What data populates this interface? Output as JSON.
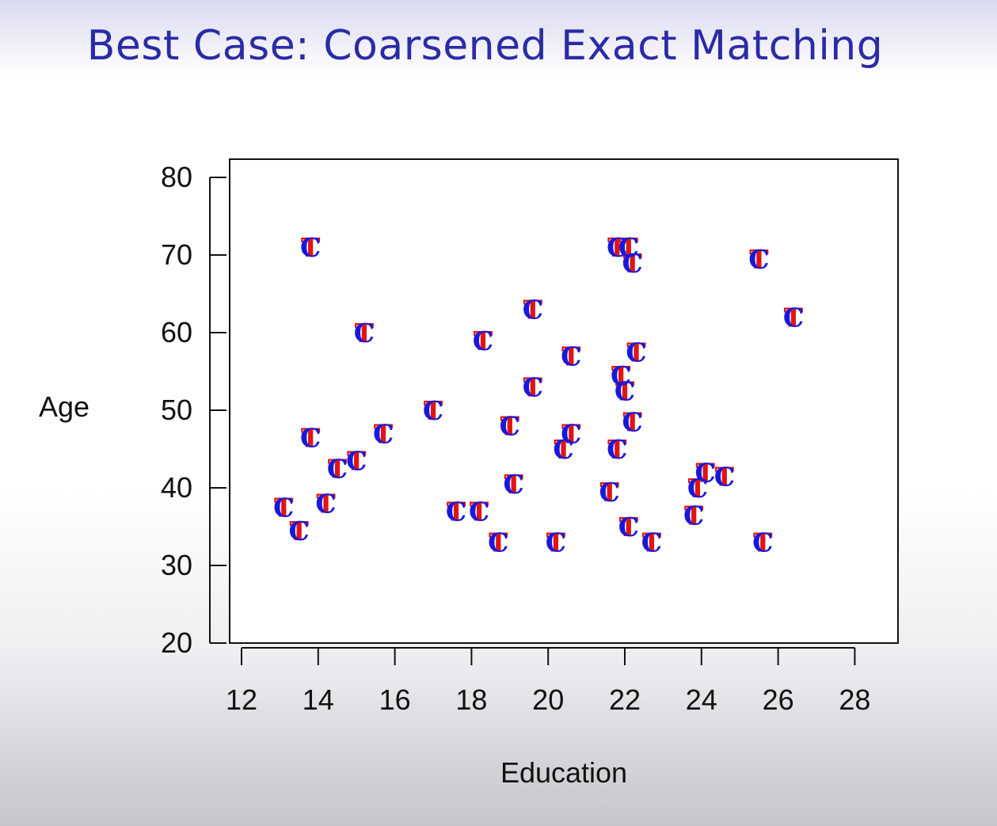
{
  "slide": {
    "title": "Best Case: Coarsened Exact Matching"
  },
  "chart_data": {
    "type": "scatter",
    "title": "Best Case: Coarsened Exact Matching",
    "xlabel": "Education",
    "ylabel": "Age",
    "xlim": [
      12,
      28
    ],
    "ylim": [
      20,
      80
    ],
    "xticks": [
      12,
      14,
      16,
      18,
      20,
      22,
      24,
      26,
      28
    ],
    "yticks": [
      20,
      30,
      40,
      50,
      60,
      70,
      80
    ],
    "grid": false,
    "series": [
      {
        "name": "T",
        "color": "#e01414",
        "marker": "T",
        "points": [
          [
            13.8,
            71
          ],
          [
            15.2,
            60
          ],
          [
            13.8,
            46.5
          ],
          [
            15.7,
            47
          ],
          [
            13.1,
            37.5
          ],
          [
            13.5,
            34.5
          ],
          [
            14.2,
            38
          ],
          [
            14.5,
            42.5
          ],
          [
            15.0,
            43.5
          ],
          [
            17.0,
            50
          ],
          [
            18.3,
            59
          ],
          [
            19.6,
            63
          ],
          [
            19.6,
            53
          ],
          [
            20.6,
            57
          ],
          [
            19.0,
            48
          ],
          [
            20.6,
            47
          ],
          [
            20.4,
            45
          ],
          [
            19.1,
            40.5
          ],
          [
            17.6,
            37
          ],
          [
            18.2,
            37
          ],
          [
            18.7,
            33
          ],
          [
            20.2,
            33
          ],
          [
            21.8,
            71
          ],
          [
            22.1,
            71
          ],
          [
            22.2,
            69
          ],
          [
            22.3,
            57.5
          ],
          [
            21.9,
            54.5
          ],
          [
            22.0,
            52.5
          ],
          [
            22.2,
            48.5
          ],
          [
            21.8,
            45
          ],
          [
            21.6,
            39.5
          ],
          [
            22.1,
            35
          ],
          [
            22.7,
            33
          ],
          [
            23.8,
            36.5
          ],
          [
            23.9,
            40
          ],
          [
            24.1,
            42
          ],
          [
            24.6,
            41.5
          ],
          [
            25.5,
            69.5
          ],
          [
            26.4,
            62
          ],
          [
            25.6,
            33
          ]
        ]
      },
      {
        "name": "C",
        "color": "#1818dc",
        "marker": "C",
        "points": [
          [
            13.8,
            71
          ],
          [
            15.2,
            60
          ],
          [
            13.8,
            46.5
          ],
          [
            15.7,
            47
          ],
          [
            13.1,
            37.5
          ],
          [
            13.5,
            34.5
          ],
          [
            14.2,
            38
          ],
          [
            14.5,
            42.5
          ],
          [
            15.0,
            43.5
          ],
          [
            17.0,
            50
          ],
          [
            18.3,
            59
          ],
          [
            19.6,
            63
          ],
          [
            19.6,
            53
          ],
          [
            20.6,
            57
          ],
          [
            19.0,
            48
          ],
          [
            20.6,
            47
          ],
          [
            20.4,
            45
          ],
          [
            19.1,
            40.5
          ],
          [
            17.6,
            37
          ],
          [
            18.2,
            37
          ],
          [
            18.7,
            33
          ],
          [
            20.2,
            33
          ],
          [
            21.8,
            71
          ],
          [
            22.1,
            71
          ],
          [
            22.2,
            69
          ],
          [
            22.3,
            57.5
          ],
          [
            21.9,
            54.5
          ],
          [
            22.0,
            52.5
          ],
          [
            22.2,
            48.5
          ],
          [
            21.8,
            45
          ],
          [
            21.6,
            39.5
          ],
          [
            22.1,
            35
          ],
          [
            22.7,
            33
          ],
          [
            23.8,
            36.5
          ],
          [
            23.9,
            40
          ],
          [
            24.1,
            42
          ],
          [
            24.6,
            41.5
          ],
          [
            25.5,
            69.5
          ],
          [
            26.4,
            62
          ],
          [
            25.6,
            33
          ]
        ]
      }
    ]
  }
}
